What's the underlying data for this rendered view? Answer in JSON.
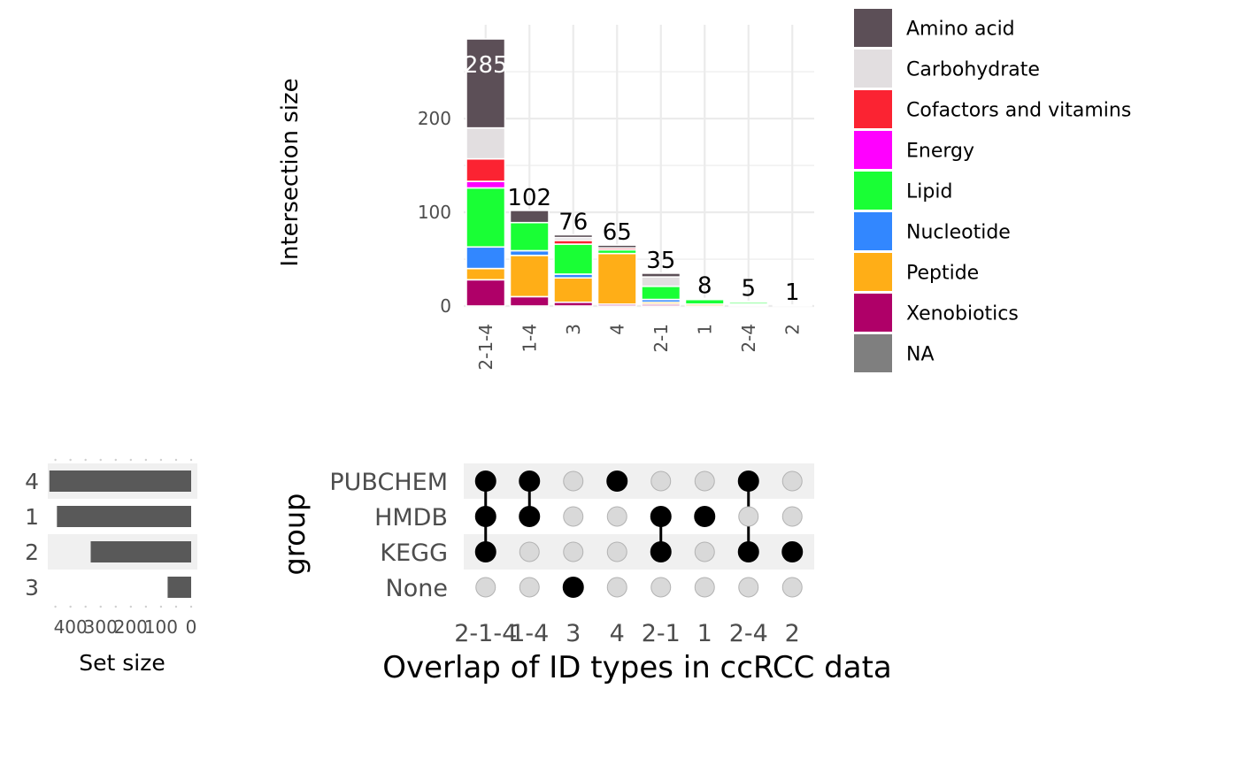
{
  "chart_data": {
    "type": "bar",
    "kind": "upset",
    "title": "Overlap of ID types in ccRCC data",
    "intersections": {
      "ylabel": "Intersection size",
      "ylim": [
        0,
        285
      ],
      "y_ticks": [
        0,
        100,
        200
      ],
      "categories": [
        "2-1-4",
        "1-4",
        "3",
        "4",
        "2-1",
        "1",
        "2-4",
        "2"
      ],
      "totals": [
        285,
        102,
        76,
        65,
        35,
        8,
        5,
        1
      ],
      "series": [
        {
          "name": "Xenobiotics",
          "color": "#AF0068",
          "values": [
            28,
            10,
            4,
            2,
            2,
            0,
            1,
            0
          ]
        },
        {
          "name": "Peptide",
          "color": "#FFAE17",
          "values": [
            12,
            44,
            26,
            54,
            2,
            2,
            1,
            0
          ]
        },
        {
          "name": "Nucleotide",
          "color": "#3287FF",
          "values": [
            23,
            5,
            4,
            0,
            3,
            0,
            0,
            0
          ]
        },
        {
          "name": "Lipid",
          "color": "#19FF35",
          "values": [
            63,
            30,
            32,
            4,
            14,
            5,
            2,
            1
          ]
        },
        {
          "name": "Energy",
          "color": "#FF00FF",
          "values": [
            7,
            0,
            0,
            0,
            0,
            0,
            0,
            0
          ]
        },
        {
          "name": "Cofactors and vitamins",
          "color": "#FB2332",
          "values": [
            24,
            0,
            4,
            2,
            0,
            0,
            0,
            0
          ]
        },
        {
          "name": "Carbohydrate",
          "color": "#E2DEE0",
          "values": [
            33,
            0,
            3,
            0,
            10,
            1,
            1,
            0
          ]
        },
        {
          "name": "Amino acid",
          "color": "#5C4F57",
          "values": [
            95,
            13,
            3,
            3,
            4,
            0,
            0,
            0
          ]
        },
        {
          "name": "NA",
          "color": "#7F7F7F",
          "values": [
            0,
            0,
            0,
            0,
            0,
            0,
            0,
            0
          ]
        }
      ]
    },
    "legend": {
      "position": "right",
      "entries": [
        "Amino acid",
        "Carbohydrate",
        "Cofactors and vitamins",
        "Energy",
        "Lipid",
        "Nucleotide",
        "Peptide",
        "Xenobiotics",
        "NA"
      ]
    },
    "matrix": {
      "ylabel": "group",
      "sets": [
        "PUBCHEM",
        "HMDB",
        "KEGG",
        "None"
      ],
      "membership": [
        [
          "PUBCHEM",
          "HMDB",
          "KEGG"
        ],
        [
          "PUBCHEM",
          "HMDB"
        ],
        [
          "None"
        ],
        [
          "PUBCHEM"
        ],
        [
          "HMDB",
          "KEGG"
        ],
        [
          "HMDB"
        ],
        [
          "PUBCHEM",
          "KEGG"
        ],
        [
          "KEGG"
        ]
      ]
    },
    "set_size": {
      "xlabel": "Set size",
      "row_labels": [
        "4",
        "1",
        "2",
        "3"
      ],
      "values": [
        470,
        445,
        333,
        78
      ],
      "x_ticks": [
        400,
        300,
        200,
        100,
        0
      ],
      "xlim": [
        475,
        0
      ]
    }
  }
}
